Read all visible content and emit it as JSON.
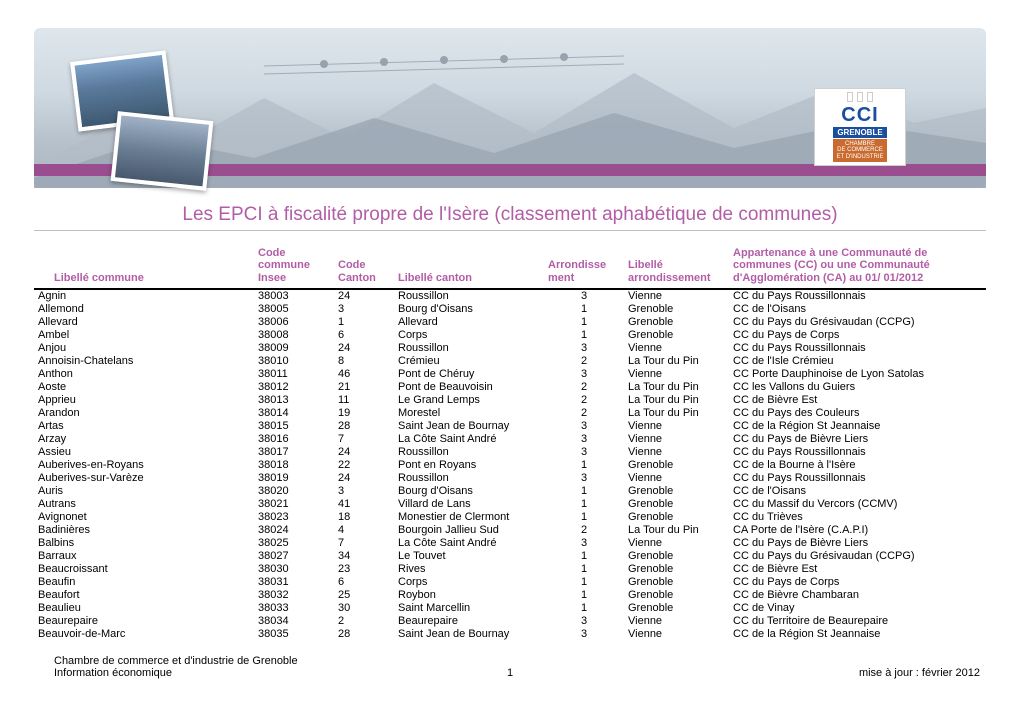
{
  "colors": {
    "accent": "#b25da6",
    "strip": "#9a4e8f",
    "logo_blue": "#1a4fa0",
    "logo_orange": "#c96b2e"
  },
  "logo": {
    "main": "CCI",
    "city": "GRENOBLE",
    "sub": "CHAMBRE\nDE COMMERCE\nET D'INDUSTRIE"
  },
  "title": "Les EPCI à fiscalité propre de l'Isère (classement aphabétique de communes)",
  "columns": {
    "commune": "Libellé commune",
    "code_insee_l1": "Code commune",
    "code_insee_l2": "Insee",
    "code_canton_l1": "Code",
    "code_canton_l2": "Canton",
    "lib_canton": "Libellé canton",
    "arr_l1": "Arrondisse",
    "arr_l2": "ment",
    "lib_arr_l1": "Libellé",
    "lib_arr_l2": "arrondissement",
    "epci_l1": "Appartenance à une Communauté de",
    "epci_l2": "communes (CC) ou une  Communauté",
    "epci_l3": "d'Agglomération (CA) au 01/ 01/2012"
  },
  "rows": [
    [
      "Agnin",
      "38003",
      "24",
      "Roussillon",
      "3",
      "Vienne",
      "CC du Pays Roussillonnais"
    ],
    [
      "Allemond",
      "38005",
      "3",
      "Bourg d'Oisans",
      "1",
      "Grenoble",
      "CC de l'Oisans"
    ],
    [
      "Allevard",
      "38006",
      "1",
      "Allevard",
      "1",
      "Grenoble",
      "CC du Pays du Grésivaudan (CCPG)"
    ],
    [
      "Ambel",
      "38008",
      "6",
      "Corps",
      "1",
      "Grenoble",
      "CC du Pays de Corps"
    ],
    [
      "Anjou",
      "38009",
      "24",
      "Roussillon",
      "3",
      "Vienne",
      "CC du Pays Roussillonnais"
    ],
    [
      "Annoisin-Chatelans",
      "38010",
      "8",
      "Crémieu",
      "2",
      "La Tour du Pin",
      "CC de l'Isle Crémieu"
    ],
    [
      "Anthon",
      "38011",
      "46",
      "Pont de Chéruy",
      "3",
      "Vienne",
      "CC Porte Dauphinoise de Lyon Satolas"
    ],
    [
      "Aoste",
      "38012",
      "21",
      "Pont de Beauvoisin",
      "2",
      "La Tour du Pin",
      "CC les Vallons du Guiers"
    ],
    [
      "Apprieu",
      "38013",
      "11",
      "Le Grand Lemps",
      "2",
      "La Tour du Pin",
      "CC de Bièvre Est"
    ],
    [
      "Arandon",
      "38014",
      "19",
      "Morestel",
      "2",
      "La Tour du Pin",
      "CC du Pays des Couleurs"
    ],
    [
      "Artas",
      "38015",
      "28",
      "Saint Jean de Bournay",
      "3",
      "Vienne",
      "CC de la Région St Jeannaise"
    ],
    [
      "Arzay",
      "38016",
      "7",
      "La Côte Saint André",
      "3",
      "Vienne",
      "CC du Pays de Bièvre Liers"
    ],
    [
      "Assieu",
      "38017",
      "24",
      "Roussillon",
      "3",
      "Vienne",
      "CC du Pays Roussillonnais"
    ],
    [
      "Auberives-en-Royans",
      "38018",
      "22",
      "Pont en Royans",
      "1",
      "Grenoble",
      "CC de la Bourne à l'Isère"
    ],
    [
      "Auberives-sur-Varèze",
      "38019",
      "24",
      "Roussillon",
      "3",
      "Vienne",
      "CC du Pays Roussillonnais"
    ],
    [
      "Auris",
      "38020",
      "3",
      "Bourg d'Oisans",
      "1",
      "Grenoble",
      "CC de l'Oisans"
    ],
    [
      "Autrans",
      "38021",
      "41",
      "Villard de Lans",
      "1",
      "Grenoble",
      "CC du Massif du Vercors (CCMV)"
    ],
    [
      "Avignonet",
      "38023",
      "18",
      "Monestier de Clermont",
      "1",
      "Grenoble",
      "CC du Trièves"
    ],
    [
      "Badinières",
      "38024",
      "4",
      "Bourgoin Jallieu Sud",
      "2",
      "La Tour du Pin",
      "CA Porte de l'Isère (C.A.P.I)"
    ],
    [
      "Balbins",
      "38025",
      "7",
      "La Côte Saint André",
      "3",
      "Vienne",
      "CC du Pays de Bièvre Liers"
    ],
    [
      "Barraux",
      "38027",
      "34",
      "Le Touvet",
      "1",
      "Grenoble",
      "CC du Pays du Grésivaudan (CCPG)"
    ],
    [
      "Beaucroissant",
      "38030",
      "23",
      "Rives",
      "1",
      "Grenoble",
      "CC de Bièvre Est"
    ],
    [
      "Beaufin",
      "38031",
      "6",
      "Corps",
      "1",
      "Grenoble",
      "CC du Pays de Corps"
    ],
    [
      "Beaufort",
      "38032",
      "25",
      "Roybon",
      "1",
      "Grenoble",
      "CC de Bièvre Chambaran"
    ],
    [
      "Beaulieu",
      "38033",
      "30",
      "Saint Marcellin",
      "1",
      "Grenoble",
      "CC de Vinay"
    ],
    [
      "Beaurepaire",
      "38034",
      "2",
      "Beaurepaire",
      "3",
      "Vienne",
      "CC du Territoire de Beaurepaire"
    ],
    [
      "Beauvoir-de-Marc",
      "38035",
      "28",
      "Saint Jean de Bournay",
      "3",
      "Vienne",
      "CC de la Région St Jeannaise"
    ]
  ],
  "footer": {
    "left_l1": "Chambre de commerce et d'industrie de Grenoble",
    "left_l2": "Information économique",
    "page": "1",
    "right": "mise à jour : février 2012"
  }
}
